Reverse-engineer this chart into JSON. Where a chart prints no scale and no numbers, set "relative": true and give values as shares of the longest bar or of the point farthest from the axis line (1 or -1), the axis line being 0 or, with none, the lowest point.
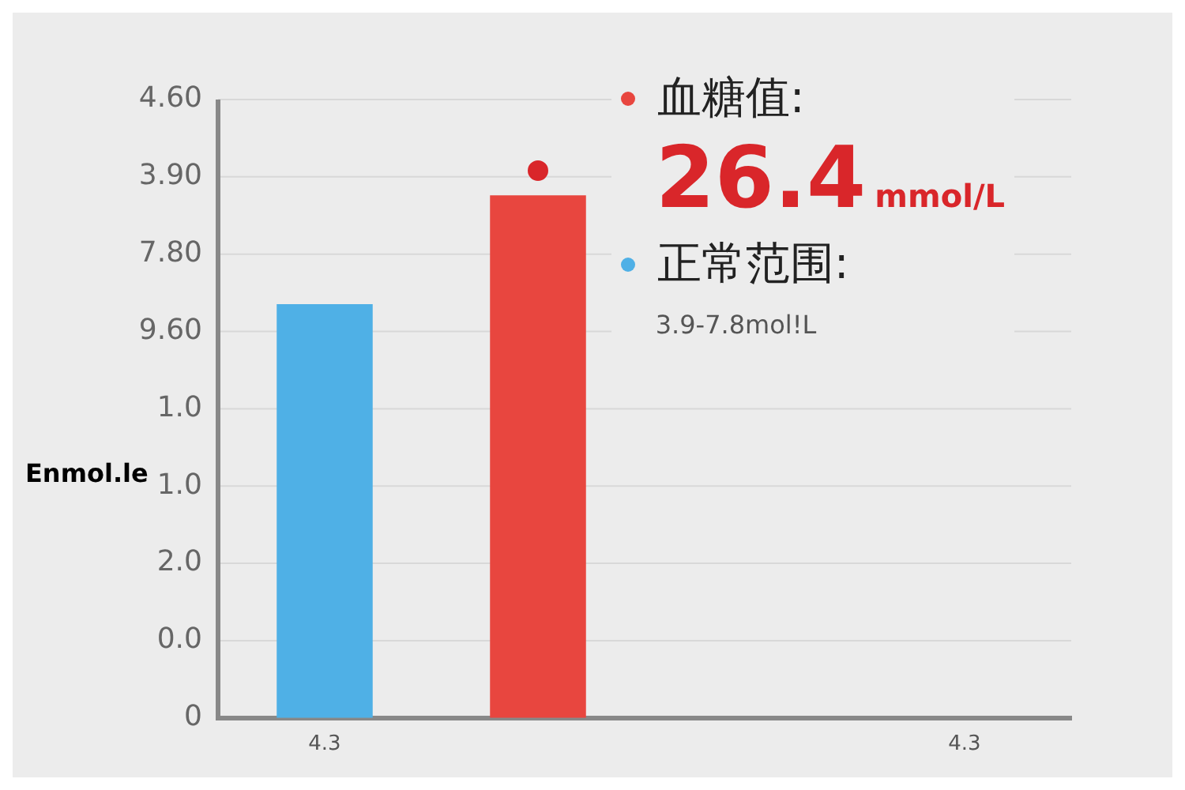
{
  "chart_data": {
    "type": "bar",
    "relative": true,
    "ylabel": "Enmol.le",
    "categories": [
      "4.3",
      null,
      null,
      "4.3"
    ],
    "series": [
      {
        "name": "血糖值:",
        "color": "#e8463f",
        "values": [
          null,
          0.955,
          null,
          null
        ]
      },
      {
        "name": "正常范围:",
        "color": "#4fb0e6",
        "values": [
          0.756,
          null,
          null,
          null
        ]
      },
      {
        "type": "scatter",
        "color": "#d9262a",
        "values": [
          null,
          1,
          null,
          null
        ]
      }
    ],
    "grid": "y",
    "legend": "top right",
    "annotations": [
      "0",
      "0.0",
      "2.0",
      "1.0",
      "1.0",
      "9.60",
      "7.80",
      "3.90",
      "4.60",
      "26.4",
      "mmol/L",
      "3.9-7.8mol!L"
    ]
  }
}
